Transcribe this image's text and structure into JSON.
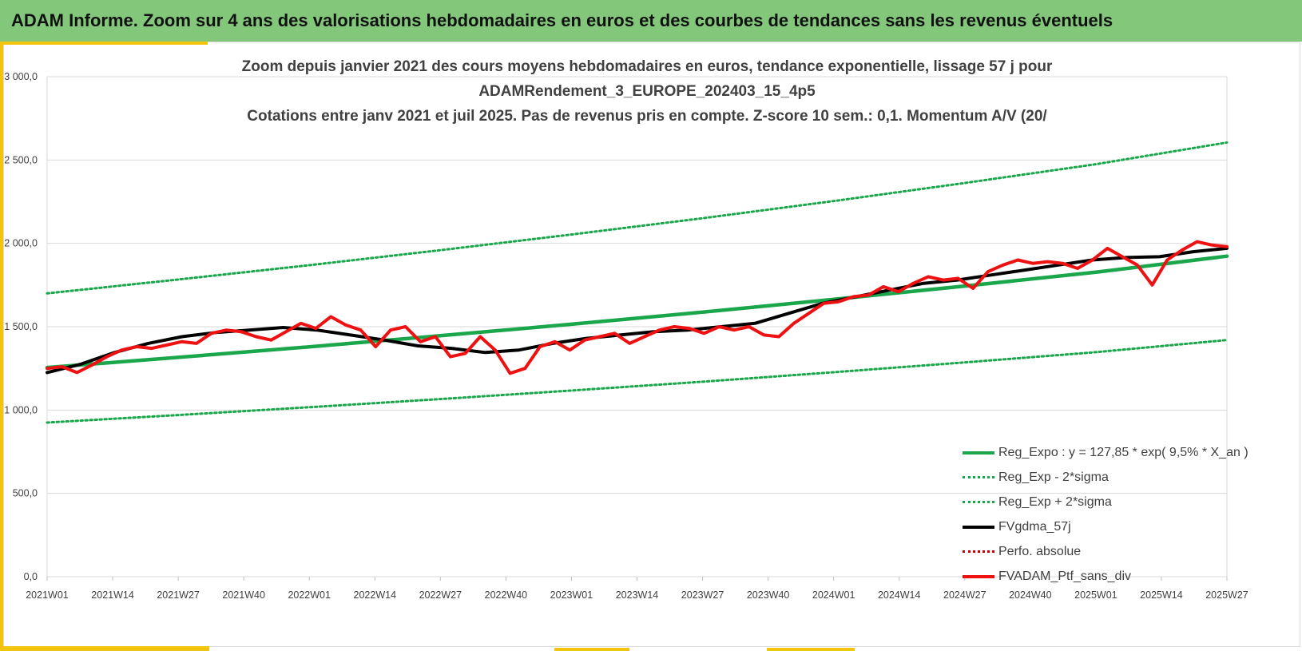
{
  "header": {
    "title": "ADAM Informe. Zoom sur 4 ans des valorisations hebdomadaires en euros et des courbes de tendances sans les revenus éventuels"
  },
  "colors": {
    "header_bg": "#83c77b",
    "accent": "#f2c40d",
    "trend": "#1aa64a",
    "band": "#1aa64a",
    "moving_average": "#000000",
    "perf": "#c00000",
    "portfolio": "#ee1111"
  },
  "chart_data": {
    "type": "line",
    "title_lines": [
      "Zoom depuis janvier 2021 des cours moyens hebdomadaires  en euros, tendance exponentielle, lissage 57 j pour",
      "ADAMRendement_3_EUROPE_202403_15_4p5",
      "Cotations  entre janv 2021 et juil 2025. Pas de revenus pris en compte. Z-score 10 sem.: 0,1. Momentum  A/V (20/"
    ],
    "ylim": [
      0,
      3000
    ],
    "y_ticks": [
      "0,0",
      "500,0",
      "1 000,0",
      "1 500,0",
      "2 000,0",
      "2 500,0",
      "3 000,0"
    ],
    "x_ticks": [
      "2021W01",
      "2021W14",
      "2021W27",
      "2021W40",
      "2022W01",
      "2022W14",
      "2022W27",
      "2022W40",
      "2023W01",
      "2023W14",
      "2023W27",
      "2023W40",
      "2024W01",
      "2024W14",
      "2024W27",
      "2024W40",
      "2025W01",
      "2025W14",
      "2025W27"
    ],
    "grid": "horizontal",
    "legend_position": "bottom-right",
    "series": [
      {
        "name": "Reg_Expo : y = 127,85 * exp( 9,5% *  X_an )",
        "style": "solid",
        "color": "#1aa64a",
        "values": [
          1255,
          1316,
          1379,
          1446,
          1515,
          1587,
          1664,
          1744,
          1827,
          1923
        ]
      },
      {
        "name": "Reg_Exp - 2*sigma",
        "style": "dotted",
        "color": "#1aa64a",
        "values": [
          925,
          970,
          1017,
          1066,
          1117,
          1170,
          1227,
          1286,
          1347,
          1420
        ]
      },
      {
        "name": "Reg_Exp + 2*sigma",
        "style": "dotted",
        "color": "#1aa64a",
        "values": [
          1700,
          1783,
          1869,
          1959,
          2053,
          2151,
          2254,
          2362,
          2475,
          2605
        ]
      },
      {
        "name": "FVgdma_57j",
        "style": "solid",
        "color": "#000000",
        "values": [
          1225,
          1275,
          1345,
          1400,
          1440,
          1465,
          1480,
          1495,
          1480,
          1450,
          1420,
          1385,
          1370,
          1345,
          1360,
          1400,
          1430,
          1450,
          1470,
          1480,
          1500,
          1520,
          1580,
          1640,
          1680,
          1720,
          1760,
          1780,
          1810,
          1840,
          1870,
          1900,
          1915,
          1920,
          1950,
          1970
        ]
      },
      {
        "name": "Perfo. absolue",
        "style": "dotted",
        "color": "#c00000",
        "values": []
      },
      {
        "name": "FVADAM_Ptf_sans_div",
        "style": "solid",
        "color": "#ee1111",
        "values": [
          1250,
          1260,
          1225,
          1270,
          1320,
          1360,
          1380,
          1370,
          1390,
          1410,
          1400,
          1460,
          1480,
          1470,
          1440,
          1420,
          1470,
          1520,
          1490,
          1560,
          1510,
          1480,
          1380,
          1480,
          1500,
          1410,
          1440,
          1320,
          1340,
          1440,
          1360,
          1220,
          1250,
          1380,
          1410,
          1360,
          1420,
          1440,
          1460,
          1400,
          1440,
          1480,
          1500,
          1490,
          1460,
          1500,
          1480,
          1500,
          1450,
          1440,
          1520,
          1580,
          1640,
          1650,
          1680,
          1690,
          1740,
          1710,
          1760,
          1800,
          1780,
          1790,
          1730,
          1830,
          1870,
          1900,
          1880,
          1890,
          1880,
          1850,
          1900,
          1970,
          1920,
          1870,
          1750,
          1900,
          1960,
          2010,
          1990,
          1980
        ]
      }
    ]
  }
}
